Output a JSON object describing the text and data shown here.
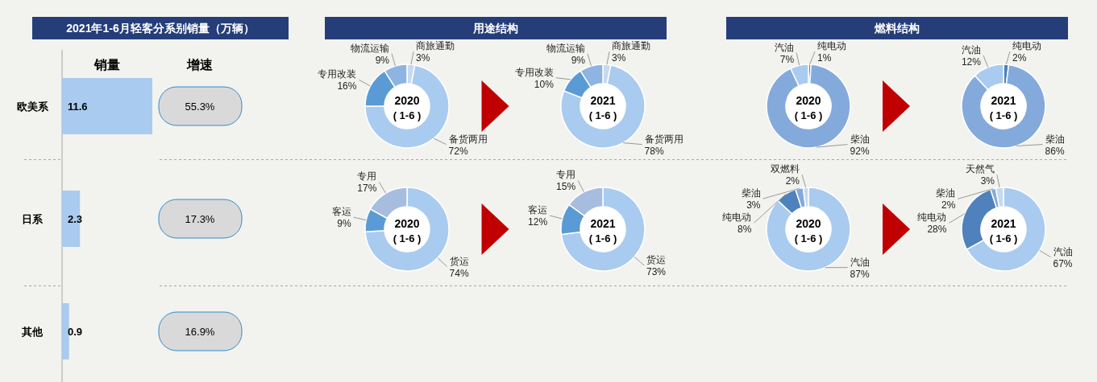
{
  "chart_data": [
    {
      "type": "bar",
      "orientation": "horizontal",
      "title": "2021年1-6月轻客分系别销量（万辆）",
      "xlabel": "销量",
      "categories": [
        "欧美系",
        "日系",
        "其他"
      ],
      "values": [
        11.6,
        2.3,
        0.9
      ],
      "color": "#a9cbef",
      "data_labels": true
    },
    {
      "type": "other",
      "title": "增速",
      "annotations": [
        "55.3%",
        "17.3%",
        "16.9%"
      ]
    },
    {
      "type": "donut",
      "title": "2020",
      "subtitle": "( 1-6 )",
      "annotations": [
        "用途结构"
      ],
      "categories": [
        "商旅通勤",
        "备货两用",
        "专用改装",
        "物流运输"
      ],
      "values": [
        3,
        72,
        16,
        9
      ],
      "value_labels": [
        "3%",
        "72%",
        "16%",
        "9%"
      ],
      "colors": [
        "#c5d9f1",
        "#a9cbef",
        "#5b9bd5",
        "#8db4e2"
      ],
      "data_labels": true
    },
    {
      "type": "donut",
      "title": "2021",
      "subtitle": "( 1-6 )",
      "categories": [
        "商旅通勤",
        "备货两用",
        "专用改装",
        "物流运输"
      ],
      "values": [
        3,
        78,
        10,
        9
      ],
      "value_labels": [
        "3%",
        "78%",
        "10%",
        "9%"
      ],
      "colors": [
        "#c5d9f1",
        "#a9cbef",
        "#5b9bd5",
        "#8db4e2"
      ],
      "data_labels": true
    },
    {
      "type": "donut",
      "title": "2020",
      "subtitle": "( 1-6 )",
      "annotations": [
        "燃料结构"
      ],
      "categories": [
        "纯电动",
        "柴油",
        "汽油"
      ],
      "values": [
        1,
        92,
        7
      ],
      "value_labels": [
        "1%",
        "92%",
        "7%"
      ],
      "colors": [
        "#4f81bd",
        "#84aadc",
        "#a9cbef"
      ],
      "data_labels": true
    },
    {
      "type": "donut",
      "title": "2021",
      "subtitle": "( 1-6 )",
      "categories": [
        "纯电动",
        "柴油",
        "汽油"
      ],
      "values": [
        2,
        86,
        12
      ],
      "value_labels": [
        "2%",
        "86%",
        "12%"
      ],
      "colors": [
        "#4f81bd",
        "#84aadc",
        "#a9cbef"
      ],
      "data_labels": true
    },
    {
      "type": "donut",
      "title": "2020",
      "subtitle": "( 1-6 )",
      "categories": [
        "货运",
        "客运",
        "专用"
      ],
      "values": [
        74,
        9,
        17
      ],
      "value_labels": [
        "74%",
        "9%",
        "17%"
      ],
      "colors": [
        "#a9cbef",
        "#5b9bd5",
        "#a6bde0"
      ],
      "data_labels": true
    },
    {
      "type": "donut",
      "title": "2021",
      "subtitle": "( 1-6 )",
      "categories": [
        "货运",
        "客运",
        "专用"
      ],
      "values": [
        73,
        12,
        15
      ],
      "value_labels": [
        "73%",
        "12%",
        "15%"
      ],
      "colors": [
        "#a9cbef",
        "#5b9bd5",
        "#a6bde0"
      ],
      "data_labels": true
    },
    {
      "type": "donut",
      "title": "2020",
      "subtitle": "( 1-6 )",
      "categories": [
        "汽油",
        "纯电动",
        "柴油",
        "双燃料"
      ],
      "values": [
        87,
        8,
        3,
        2
      ],
      "value_labels": [
        "87%",
        "8%",
        "3%",
        "2%"
      ],
      "colors": [
        "#a9cbef",
        "#4f81bd",
        "#84aadc",
        "#c5d9f1"
      ],
      "data_labels": true
    },
    {
      "type": "donut",
      "title": "2021",
      "subtitle": "( 1-6 )",
      "categories": [
        "汽油",
        "纯电动",
        "柴油",
        "天然气"
      ],
      "values": [
        67,
        28,
        2,
        3
      ],
      "value_labels": [
        "67%",
        "28%",
        "2%",
        "3%"
      ],
      "colors": [
        "#a9cbef",
        "#4f81bd",
        "#84aadc",
        "#c5d9f1"
      ],
      "data_labels": true
    }
  ]
}
